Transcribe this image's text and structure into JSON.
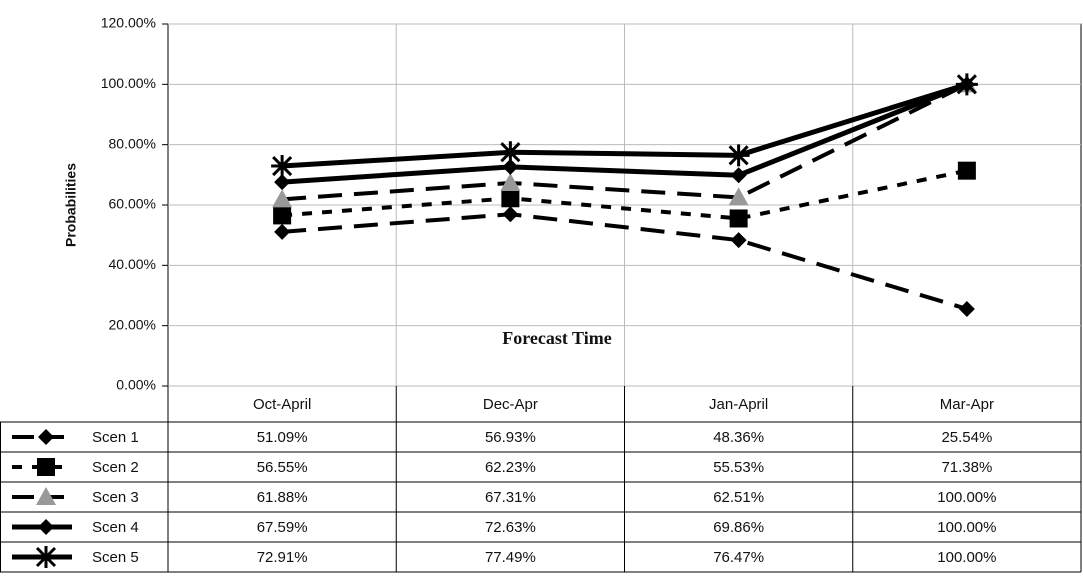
{
  "chart_data": {
    "type": "line",
    "y_axis_label": "Probabilities",
    "annotation": "Forecast Time",
    "categories": [
      "Oct-April",
      "Dec-Apr",
      "Jan-April",
      "Mar-Apr"
    ],
    "ylim": [
      0,
      120
    ],
    "yticks": [
      {
        "value": 0,
        "label": "0.00%"
      },
      {
        "value": 20,
        "label": "20.00%"
      },
      {
        "value": 40,
        "label": "40.00%"
      },
      {
        "value": 60,
        "label": "60.00%"
      },
      {
        "value": 80,
        "label": "80.00%"
      },
      {
        "value": 100,
        "label": "100.00%"
      },
      {
        "value": 120,
        "label": "120.00%"
      }
    ],
    "grid": true,
    "series": [
      {
        "name": "Scen 1",
        "color": "#000000",
        "marker": "diamond",
        "dash": "long",
        "values": [
          51.09,
          56.93,
          48.36,
          25.54
        ],
        "value_labels": [
          "51.09%",
          "56.93%",
          "48.36%",
          "25.54%"
        ]
      },
      {
        "name": "Scen 2",
        "color": "#000000",
        "marker": "square",
        "dash": "short",
        "values": [
          56.55,
          62.23,
          55.53,
          71.38
        ],
        "value_labels": [
          "56.55%",
          "62.23%",
          "55.53%",
          "71.38%"
        ]
      },
      {
        "name": "Scen 3",
        "color": "#000000",
        "marker": "triangle",
        "dash": "long",
        "values": [
          61.88,
          67.31,
          62.51,
          100.0
        ],
        "value_labels": [
          "61.88%",
          "67.31%",
          "62.51%",
          "100.00%"
        ]
      },
      {
        "name": "Scen 4",
        "color": "#000000",
        "marker": "diamond",
        "dash": "solid",
        "values": [
          67.59,
          72.63,
          69.86,
          100.0
        ],
        "value_labels": [
          "67.59%",
          "72.63%",
          "69.86%",
          "100.00%"
        ]
      },
      {
        "name": "Scen 5",
        "color": "#000000",
        "marker": "star",
        "dash": "solid",
        "values": [
          72.91,
          77.49,
          76.47,
          100.0
        ],
        "value_labels": [
          "72.91%",
          "77.49%",
          "76.47%",
          "100.00%"
        ]
      }
    ]
  }
}
